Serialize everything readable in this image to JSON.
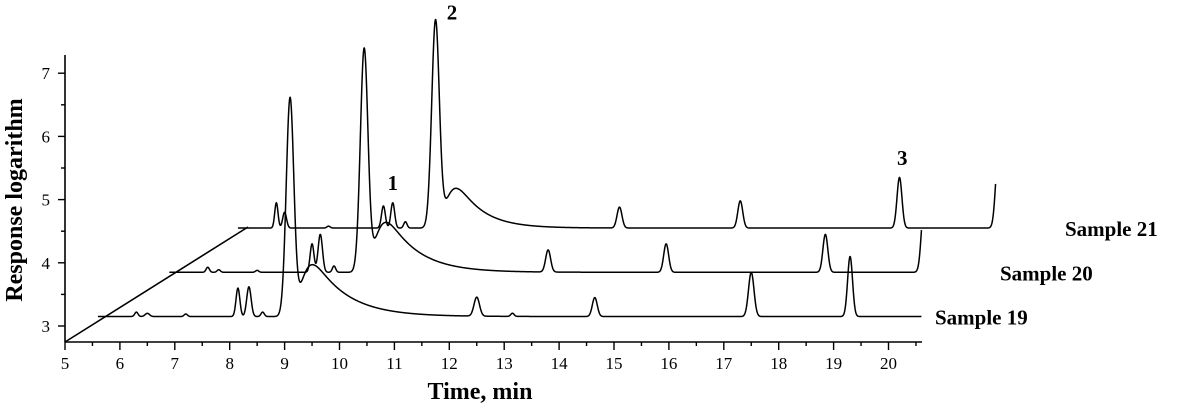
{
  "chart_data": {
    "type": "line",
    "xlabel": "Time, min",
    "ylabel": "Response logarithm",
    "xlim": [
      5,
      20.5
    ],
    "ylim": [
      2.75,
      7.55
    ],
    "x_ticks": [
      "5",
      "6",
      "7",
      "8",
      "9",
      "10",
      "11",
      "12",
      "13",
      "14",
      "15",
      "16",
      "17",
      "18",
      "19",
      "20"
    ],
    "y_ticks": [
      "3",
      "4",
      "5",
      "6",
      "7"
    ],
    "series": [
      {
        "name": "Sample 19",
        "time_range": [
          5.6,
          20.6
        ],
        "baseline": 3.15,
        "peaks": [
          {
            "t": 6.3,
            "h": 3.22,
            "w": 0.03
          },
          {
            "t": 6.5,
            "h": 3.2,
            "w": 0.04
          },
          {
            "t": 7.2,
            "h": 3.19,
            "w": 0.03
          },
          {
            "t": 8.15,
            "h": 3.6,
            "w": 0.035
          },
          {
            "t": 8.35,
            "h": 3.62,
            "w": 0.04
          },
          {
            "t": 8.6,
            "h": 3.22,
            "w": 0.03
          },
          {
            "t": 9.1,
            "h": 6.62,
            "w": 0.07,
            "tail": 0.6
          },
          {
            "t": 12.5,
            "h": 3.45,
            "w": 0.05
          },
          {
            "t": 13.15,
            "h": 3.2,
            "w": 0.03
          },
          {
            "t": 14.65,
            "h": 3.45,
            "w": 0.045
          },
          {
            "t": 17.5,
            "h": 3.85,
            "w": 0.05
          },
          {
            "t": 19.3,
            "h": 4.1,
            "w": 0.045
          }
        ]
      },
      {
        "name": "Sample 20",
        "time_range": [
          6.9,
          20.6
        ],
        "baseline": 3.85,
        "peaks": [
          {
            "t": 7.6,
            "h": 3.93,
            "w": 0.03
          },
          {
            "t": 7.8,
            "h": 3.89,
            "w": 0.03
          },
          {
            "t": 8.5,
            "h": 3.88,
            "w": 0.03
          },
          {
            "t": 9.5,
            "h": 4.3,
            "w": 0.035
          },
          {
            "t": 9.65,
            "h": 4.45,
            "w": 0.04
          },
          {
            "t": 9.9,
            "h": 3.95,
            "w": 0.03
          },
          {
            "t": 10.45,
            "h": 7.4,
            "w": 0.07,
            "tail": 0.55
          },
          {
            "t": 13.8,
            "h": 4.2,
            "w": 0.045
          },
          {
            "t": 15.95,
            "h": 4.3,
            "w": 0.045
          },
          {
            "t": 18.85,
            "h": 4.45,
            "w": 0.045
          },
          {
            "t": 20.65,
            "h": 4.95,
            "w": 0.05
          }
        ]
      },
      {
        "name": "Sample 21",
        "time_range": [
          8.15,
          21.95
        ],
        "baseline": 4.55,
        "peaks": [
          {
            "t": 8.85,
            "h": 4.95,
            "w": 0.03
          },
          {
            "t": 9.0,
            "h": 4.8,
            "w": 0.035
          },
          {
            "t": 9.8,
            "h": 4.58,
            "w": 0.03
          },
          {
            "t": 10.8,
            "h": 4.9,
            "w": 0.035
          },
          {
            "t": 10.97,
            "h": 4.95,
            "w": 0.035
          },
          {
            "t": 11.2,
            "h": 4.65,
            "w": 0.03
          },
          {
            "t": 11.75,
            "h": 7.85,
            "w": 0.07,
            "tail": 0.45
          },
          {
            "t": 15.1,
            "h": 4.88,
            "w": 0.045
          },
          {
            "t": 17.3,
            "h": 4.98,
            "w": 0.045
          },
          {
            "t": 20.2,
            "h": 5.35,
            "w": 0.045
          },
          {
            "t": 22.0,
            "h": 5.7,
            "w": 0.05
          }
        ]
      }
    ],
    "annotations": [
      {
        "text": "1",
        "x": 10.97,
        "y": 5.15
      },
      {
        "text": "2",
        "x": 12.05,
        "y": 7.85
      },
      {
        "text": "3",
        "x": 20.25,
        "y": 5.55
      }
    ]
  }
}
